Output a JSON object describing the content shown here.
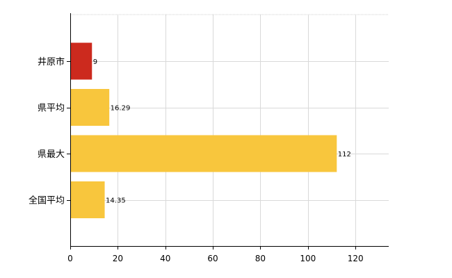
{
  "chart_data": {
    "type": "bar",
    "orientation": "horizontal",
    "title": "",
    "xlabel": "",
    "ylabel": "",
    "categories": [
      "井原市",
      "県平均",
      "県最大",
      "全国平均"
    ],
    "values": [
      9,
      16.29,
      112,
      14.35
    ],
    "data_labels": [
      "9",
      "16.29",
      "112",
      "14.35"
    ],
    "bar_colors": [
      "#cc2a1e",
      "#f8c63d",
      "#f8c63d",
      "#f8c63d"
    ],
    "xlim": [
      0,
      134
    ],
    "x_ticks": [
      0,
      20,
      40,
      60,
      80,
      100,
      120
    ],
    "x_tick_labels": [
      "0",
      "20",
      "40",
      "60",
      "80",
      "100",
      "120"
    ],
    "grid": true,
    "legend": "none"
  }
}
